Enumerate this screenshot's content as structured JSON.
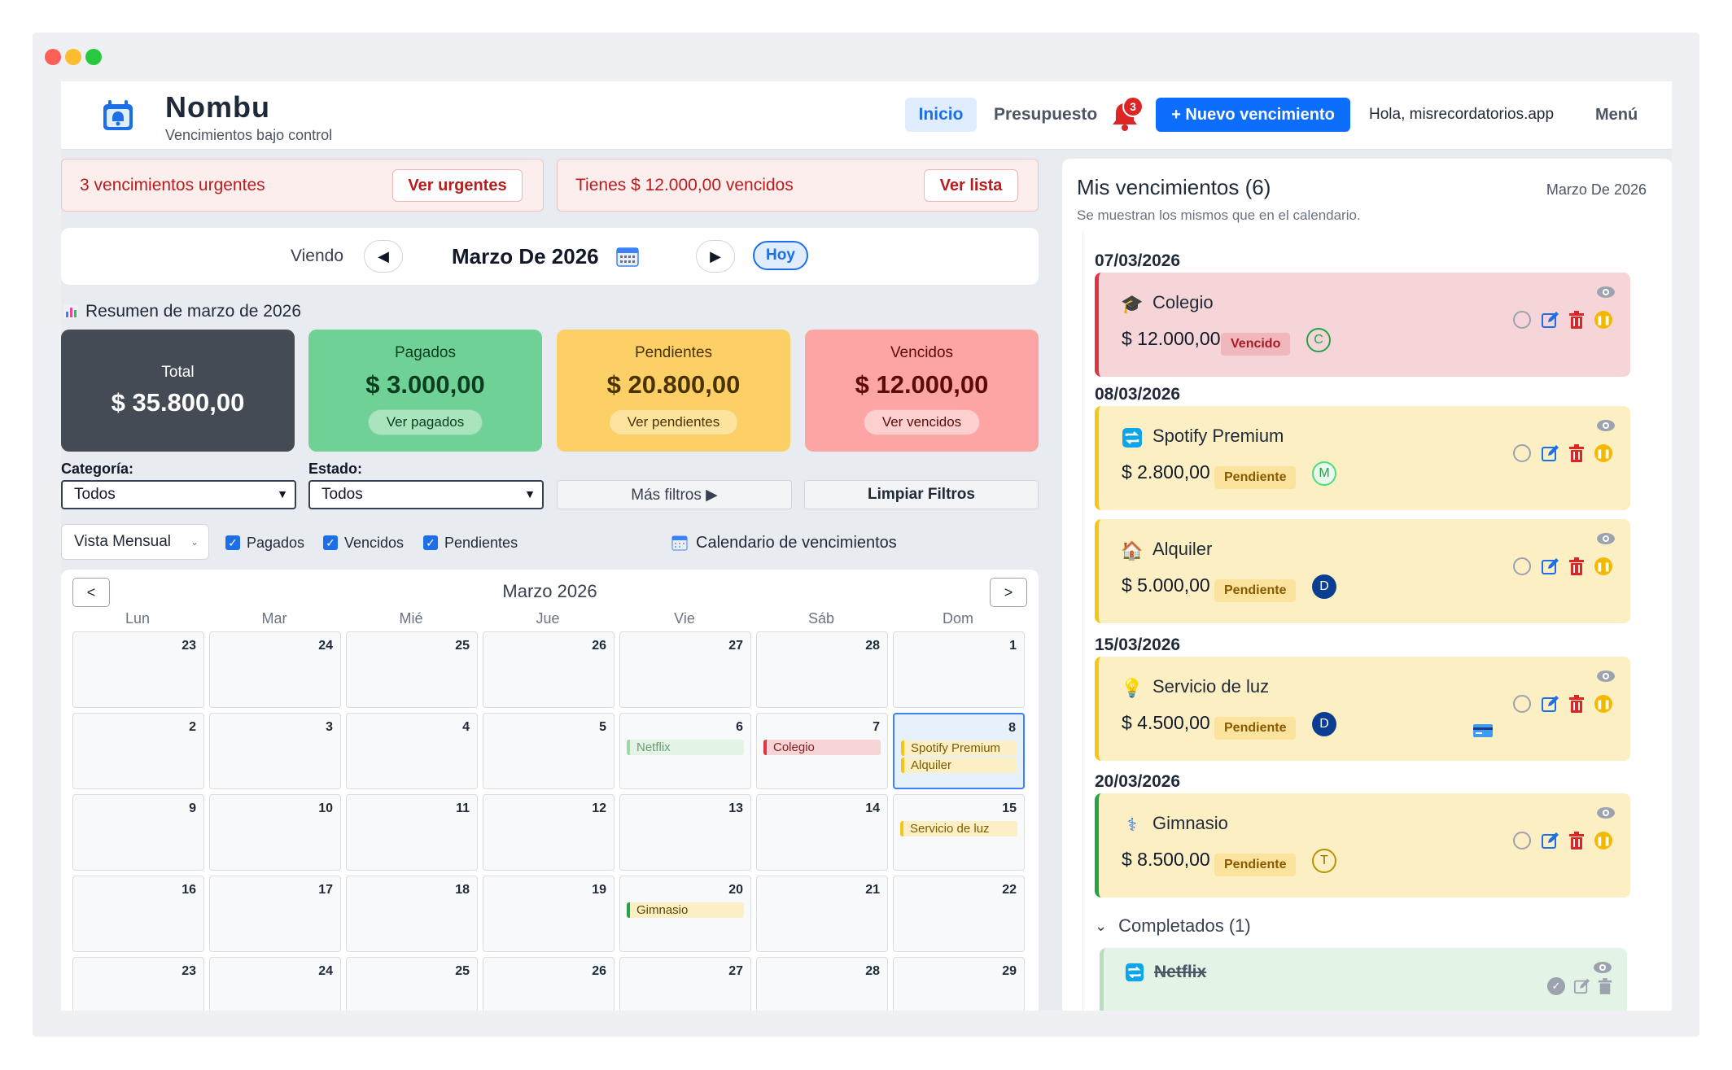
{
  "header": {
    "brand": "Nombu",
    "tagline": "Vencimientos bajo control",
    "nav_inicio": "Inicio",
    "nav_presupuesto": "Presupuesto",
    "notif_count": "3",
    "new_button": "+ Nuevo vencimiento",
    "greeting": "Hola, misrecordatorios.app",
    "menu": "Menú"
  },
  "alerts": [
    {
      "text": "3 vencimientos urgentes",
      "button": "Ver urgentes"
    },
    {
      "text": "Tienes $ 12.000,00 vencidos",
      "button": "Ver lista"
    }
  ],
  "month_nav": {
    "viendo": "Viendo",
    "prev": "◀",
    "next": "▶",
    "title": "Marzo De 2026",
    "hoy": "Hoy"
  },
  "summary": {
    "title": "Resumen de marzo de 2026",
    "total_label": "Total",
    "total_amount": "$ 35.800,00",
    "pagados_label": "Pagados",
    "pagados_amount": "$ 3.000,00",
    "pagados_btn": "Ver pagados",
    "pendientes_label": "Pendientes",
    "pendientes_amount": "$ 20.800,00",
    "pendientes_btn": "Ver pendientes",
    "vencidos_label": "Vencidos",
    "vencidos_amount": "$ 12.000,00",
    "vencidos_btn": "Ver vencidos"
  },
  "filters": {
    "categoria_label": "Categoría:",
    "categoria_value": "Todos",
    "estado_label": "Estado:",
    "estado_value": "Todos",
    "mas_filtros": "Más filtros ▶",
    "limpiar": "Limpiar Filtros",
    "vista": "Vista Mensual",
    "check_pagados": "Pagados",
    "check_vencidos": "Vencidos",
    "check_pendientes": "Pendientes",
    "cal_heading": "Calendario de vencimientos"
  },
  "calendar": {
    "title": "Marzo 2026",
    "prev": "<",
    "next": ">",
    "weekdays": [
      "Lun",
      "Mar",
      "Mié",
      "Jue",
      "Vie",
      "Sáb",
      "Dom"
    ],
    "weeks": [
      [
        "23",
        "24",
        "25",
        "26",
        "27",
        "28",
        "1"
      ],
      [
        "2",
        "3",
        "4",
        "5",
        "6",
        "7",
        "8"
      ],
      [
        "9",
        "10",
        "11",
        "12",
        "13",
        "14",
        "15"
      ],
      [
        "16",
        "17",
        "18",
        "19",
        "20",
        "21",
        "22"
      ],
      [
        "23",
        "24",
        "25",
        "26",
        "27",
        "28",
        "29"
      ]
    ],
    "events": {
      "netflix": "Netflix",
      "colegio": "Colegio",
      "spotify": "Spotify Premium",
      "alquiler": "Alquiler",
      "luz": "Servicio de luz",
      "gimnasio": "Gimnasio"
    }
  },
  "panel": {
    "title": "Mis vencimientos (6)",
    "month": "Marzo De 2026",
    "subtitle": "Se muestran los mismos que en el calendario.",
    "items": [
      {
        "date": "07/03/2026",
        "name": "Colegio",
        "amount": "$ 12.000,00",
        "status": "Vencido",
        "initial": "C",
        "icon": "graduation-cap-icon"
      },
      {
        "date": "08/03/2026",
        "name": "Spotify Premium",
        "amount": "$ 2.800,00",
        "status": "Pendiente",
        "initial": "M",
        "icon": "repeat-icon"
      },
      {
        "date": "",
        "name": "Alquiler",
        "amount": "$ 5.000,00",
        "status": "Pendiente",
        "initial": "D",
        "icon": "house-icon"
      },
      {
        "date": "15/03/2026",
        "name": "Servicio de luz",
        "amount": "$ 4.500,00",
        "status": "Pendiente",
        "initial": "D",
        "icon": "lightbulb-icon"
      },
      {
        "date": "20/03/2026",
        "name": "Gimnasio",
        "amount": "$ 8.500,00",
        "status": "Pendiente",
        "initial": "T",
        "icon": "stethoscope-icon"
      }
    ],
    "completados": "Completados (1)",
    "done_item": "Netflix"
  }
}
